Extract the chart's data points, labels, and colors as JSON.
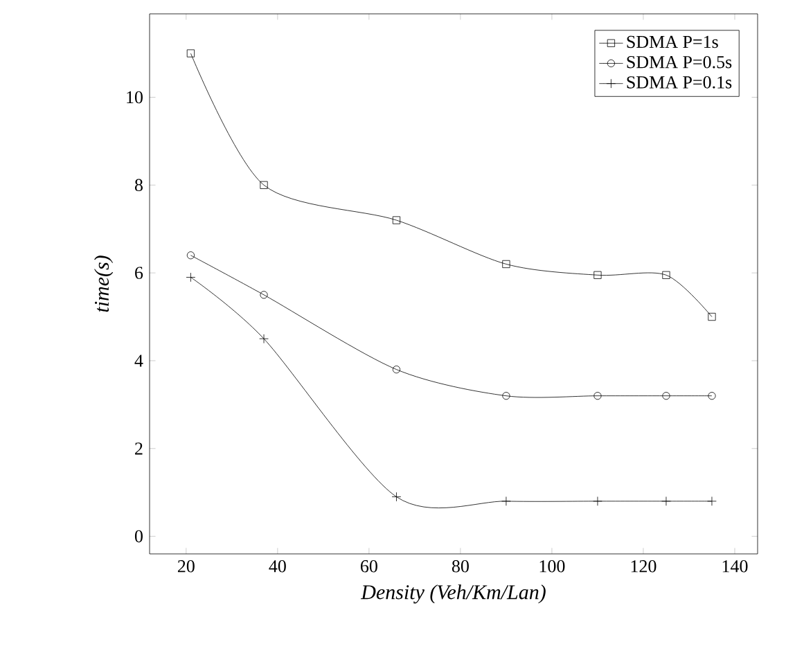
{
  "chart_data": {
    "type": "line",
    "xlabel": "*Density (Veh/Km/Lan)*",
    "ylabel": "*time(s)*",
    "x": [
      21,
      37,
      66,
      90,
      110,
      125,
      135
    ],
    "series": [
      {
        "name": "SDMA P=1s",
        "color": "#000000",
        "marker": "square",
        "values": [
          11,
          8,
          7.2,
          6.2,
          5.95,
          5.95,
          5
        ]
      },
      {
        "name": "SDMA P=0.5s",
        "color": "#000000",
        "marker": "circle",
        "values": [
          6.4,
          5.5,
          3.8,
          3.2,
          3.2,
          3.2,
          3.2
        ]
      },
      {
        "name": "SDMA P=0.1s",
        "color": "#000000",
        "marker": "cross",
        "values": [
          5.9,
          4.5,
          0.9,
          0.8,
          0.8,
          0.8,
          0.8
        ]
      }
    ],
    "xlim": [
      12,
      145
    ],
    "ylim": [
      -0.4,
      11.9
    ],
    "xticks": [
      20,
      40,
      60,
      80,
      100,
      120,
      140
    ],
    "yticks": [
      0,
      2,
      4,
      6,
      8,
      10
    ],
    "legend": "top right",
    "grid": false
  }
}
